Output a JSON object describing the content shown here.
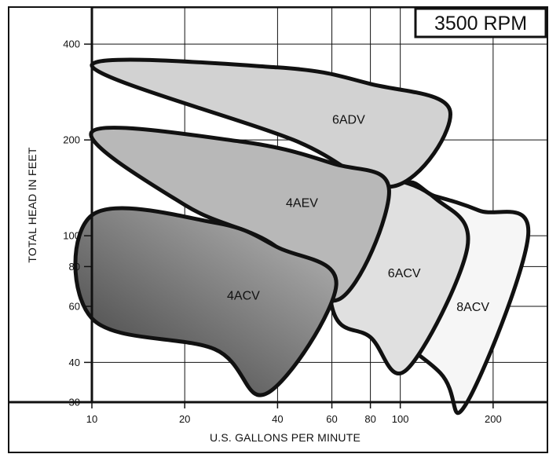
{
  "chart_data": {
    "type": "area",
    "title": "3500 RPM",
    "xlabel": "U.S. GALLONS PER MINUTE",
    "ylabel": "TOTAL HEAD IN FEET",
    "x_scale": "log",
    "y_scale": "log",
    "xlim": [
      10,
      300
    ],
    "ylim": [
      30,
      520
    ],
    "x_ticks": [
      10,
      20,
      40,
      60,
      80,
      100,
      200
    ],
    "x_tick_labels": [
      "10",
      "20",
      "40",
      "60",
      "80",
      "100",
      "200"
    ],
    "x_grid": [
      10,
      20,
      40,
      60,
      80,
      100,
      200,
      300
    ],
    "y_ticks": [
      30,
      40,
      60,
      80,
      100,
      200,
      400
    ],
    "y_tick_labels": [
      "30",
      "40",
      "60",
      "80",
      "100",
      "200",
      "400"
    ],
    "y_grid": [
      30,
      40,
      60,
      80,
      100,
      200,
      400,
      520
    ],
    "grid": true,
    "series": [
      {
        "name": "8ACV",
        "fill": "#f6f6f6",
        "points": [
          [
            100,
            140
          ],
          [
            130,
            133
          ],
          [
            180,
            120
          ],
          [
            260,
            101
          ],
          [
            163,
            29.5
          ],
          [
            135,
            37
          ],
          [
            75,
            66
          ]
        ],
        "label_position": [
          172,
          58
        ]
      },
      {
        "name": "6ACV",
        "fill": "#e0e0e0",
        "points": [
          [
            60,
            161
          ],
          [
            90,
            153
          ],
          [
            130,
            131
          ],
          [
            165,
            92
          ],
          [
            105,
            38
          ],
          [
            80,
            48
          ],
          [
            60,
            60
          ]
        ],
        "label_position": [
          103,
          74
        ]
      },
      {
        "name": "6ADV",
        "fill": "#d2d2d2",
        "points": [
          [
            10,
            342
          ],
          [
            40,
            338
          ],
          [
            80,
            300
          ],
          [
            145,
            247
          ],
          [
            95,
            143
          ],
          [
            45,
            200
          ]
        ],
        "label_position": [
          68,
          225
        ]
      },
      {
        "name": "4AEV",
        "fill": "#b8b8b8",
        "points": [
          [
            10,
            212
          ],
          [
            30,
            198
          ],
          [
            60,
            169
          ],
          [
            92,
            139
          ],
          [
            63,
            63
          ],
          [
            38,
            95
          ],
          [
            20,
            125
          ]
        ],
        "label_position": [
          48,
          123
        ]
      },
      {
        "name": "4ACV",
        "gradient": [
          "#3a3a3a",
          "#b5b5b5"
        ],
        "points": [
          [
            10,
            116
          ],
          [
            25,
            110
          ],
          [
            40,
            92
          ],
          [
            62,
            70
          ],
          [
            37,
            32
          ],
          [
            25,
            44
          ],
          [
            10,
            55
          ]
        ],
        "label_position": [
          31,
          63
        ]
      }
    ]
  }
}
